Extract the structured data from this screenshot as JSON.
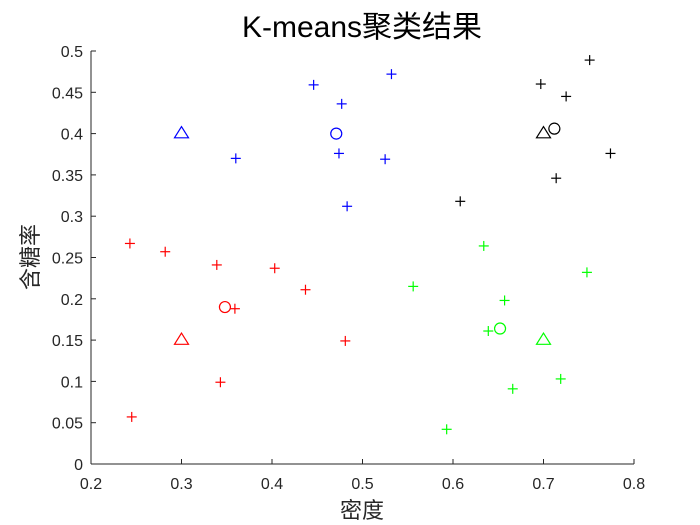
{
  "chart_data": {
    "type": "scatter",
    "title": "K-means聚类结果",
    "xlabel": "密度",
    "ylabel": "含糖率",
    "xlim": [
      0.2,
      0.8
    ],
    "ylim": [
      0,
      0.5
    ],
    "xticks": [
      "0.2",
      "0.3",
      "0.4",
      "0.5",
      "0.6",
      "0.7",
      "0.8"
    ],
    "yticks": [
      "0",
      "0.05",
      "0.1",
      "0.15",
      "0.2",
      "0.25",
      "0.3",
      "0.35",
      "0.4",
      "0.45",
      "0.5"
    ],
    "grid": false,
    "series": [
      {
        "color": "#0000ff",
        "marker": "plus",
        "points": [
          [
            0.446,
            0.459
          ],
          [
            0.532,
            0.472
          ],
          [
            0.477,
            0.436
          ],
          [
            0.36,
            0.37
          ],
          [
            0.474,
            0.376
          ],
          [
            0.525,
            0.369
          ],
          [
            0.483,
            0.312
          ]
        ]
      },
      {
        "color": "#000000",
        "marker": "plus",
        "points": [
          [
            0.751,
            0.489
          ],
          [
            0.697,
            0.46
          ],
          [
            0.725,
            0.445
          ],
          [
            0.774,
            0.376
          ],
          [
            0.714,
            0.346
          ],
          [
            0.608,
            0.318
          ]
        ]
      },
      {
        "color": "#ff0000",
        "marker": "plus",
        "points": [
          [
            0.243,
            0.267
          ],
          [
            0.282,
            0.257
          ],
          [
            0.339,
            0.241
          ],
          [
            0.403,
            0.237
          ],
          [
            0.437,
            0.211
          ],
          [
            0.359,
            0.188
          ],
          [
            0.481,
            0.149
          ],
          [
            0.343,
            0.099
          ],
          [
            0.245,
            0.057
          ]
        ]
      },
      {
        "color": "#00ff00",
        "marker": "plus",
        "points": [
          [
            0.634,
            0.264
          ],
          [
            0.748,
            0.232
          ],
          [
            0.556,
            0.215
          ],
          [
            0.657,
            0.198
          ],
          [
            0.639,
            0.161
          ],
          [
            0.719,
            0.103
          ],
          [
            0.666,
            0.091
          ],
          [
            0.593,
            0.042
          ]
        ]
      },
      {
        "color": "#0000ff",
        "marker": "circle",
        "points": [
          [
            0.471,
            0.4
          ]
        ]
      },
      {
        "color": "#000000",
        "marker": "circle",
        "points": [
          [
            0.712,
            0.406
          ]
        ]
      },
      {
        "color": "#ff0000",
        "marker": "circle",
        "points": [
          [
            0.348,
            0.19
          ]
        ]
      },
      {
        "color": "#00ff00",
        "marker": "circle",
        "points": [
          [
            0.652,
            0.164
          ]
        ]
      },
      {
        "color": "#0000ff",
        "marker": "triangle",
        "points": [
          [
            0.3,
            0.4
          ]
        ]
      },
      {
        "color": "#000000",
        "marker": "triangle",
        "points": [
          [
            0.7,
            0.4
          ]
        ]
      },
      {
        "color": "#ff0000",
        "marker": "triangle",
        "points": [
          [
            0.3,
            0.15
          ]
        ]
      },
      {
        "color": "#00ff00",
        "marker": "triangle",
        "points": [
          [
            0.7,
            0.15
          ]
        ]
      }
    ]
  }
}
